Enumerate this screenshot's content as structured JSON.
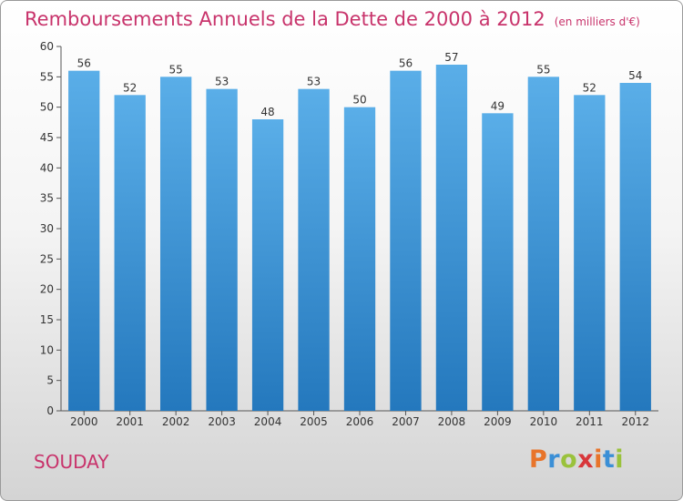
{
  "header": {
    "title": "Remboursements Annuels de la Dette de 2000 à 2012",
    "unit": "(en milliers d'€)"
  },
  "footer": {
    "commune": "SOUDAY",
    "logo_text": "Proxiti"
  },
  "colors": {
    "title": "#c8336b",
    "bar_top": "#5aaee8",
    "bar_bottom": "#2478bd",
    "logo_letters": [
      "#e8742a",
      "#3b8fd6",
      "#9ac23c",
      "#d8363a",
      "#e8742a",
      "#3b8fd6",
      "#9ac23c"
    ]
  },
  "chart_data": {
    "type": "bar",
    "title": "Remboursements Annuels de la Dette de 2000 à 2012",
    "subtitle": "(en milliers d'€)",
    "categories": [
      "2000",
      "2001",
      "2002",
      "2003",
      "2004",
      "2005",
      "2006",
      "2007",
      "2008",
      "2009",
      "2010",
      "2011",
      "2012"
    ],
    "values": [
      56,
      52,
      55,
      53,
      48,
      53,
      50,
      56,
      57,
      49,
      55,
      52,
      54
    ],
    "ylim": [
      0,
      60
    ],
    "yticks": [
      0,
      5,
      10,
      15,
      20,
      25,
      30,
      35,
      40,
      45,
      50,
      55,
      60
    ],
    "grid": false,
    "data_labels": true,
    "legend": "none"
  }
}
